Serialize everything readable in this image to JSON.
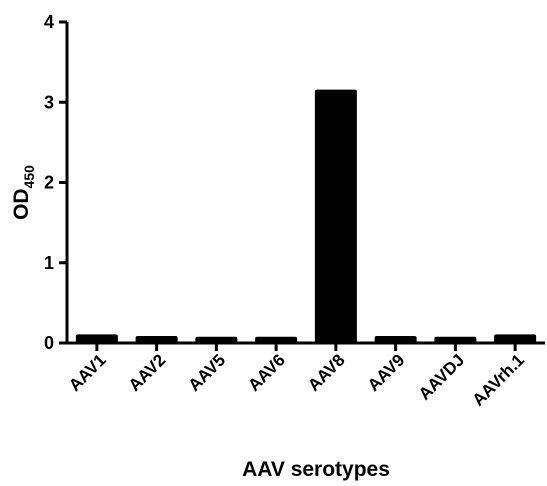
{
  "chart_data": {
    "type": "bar",
    "categories": [
      "AAV1",
      "AAV2",
      "AAV5",
      "AAV6",
      "AAV8",
      "AAV9",
      "AAVDJ",
      "AAVrh.1"
    ],
    "values": [
      0.07,
      0.05,
      0.04,
      0.04,
      3.12,
      0.05,
      0.04,
      0.07
    ],
    "title": "",
    "xlabel": "AAV serotypes",
    "ylabel": {
      "main": "OD",
      "subscript": "450"
    },
    "ylim": [
      0,
      4
    ],
    "yticks": [
      "0",
      "1",
      "2",
      "3",
      "4"
    ],
    "grid": false,
    "legend": "none",
    "bar_color": "#000000"
  }
}
